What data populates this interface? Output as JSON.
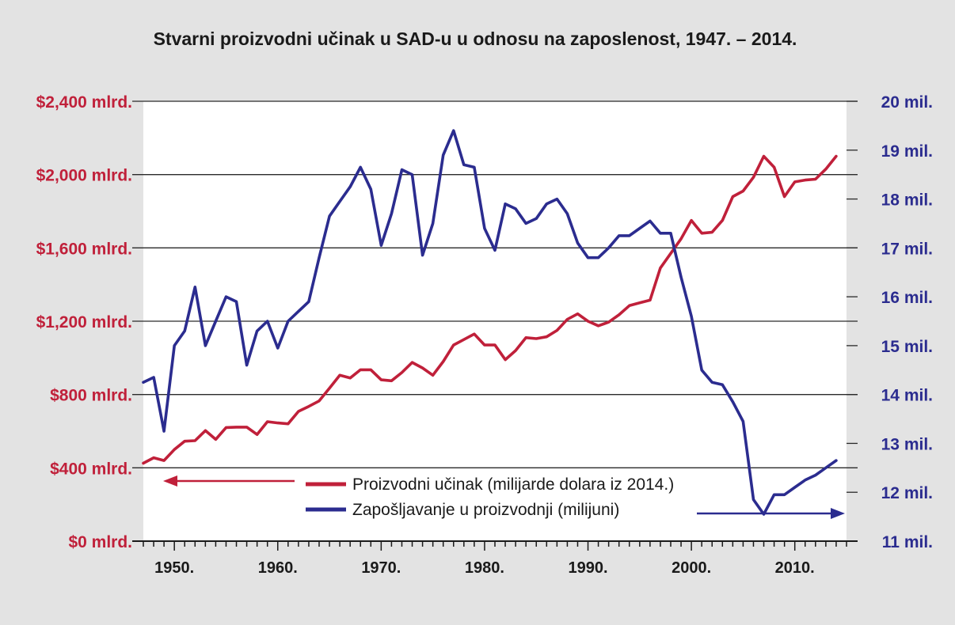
{
  "chart_data": {
    "type": "line",
    "title": "Stvarni proizvodni učinak u SAD-u u odnosu na zaposlenost, 1947. – 2014.",
    "xlim": [
      1947,
      2015
    ],
    "x_ticks": [
      1950,
      1960,
      1970,
      1980,
      1990,
      2000,
      2010
    ],
    "x_tick_labels": [
      "1950.",
      "1960.",
      "1970.",
      "1980.",
      "1990.",
      "2000.",
      "2010."
    ],
    "y_left": {
      "ylim": [
        0,
        2400
      ],
      "ticks": [
        0,
        400,
        800,
        1200,
        1600,
        2000,
        2400
      ],
      "tick_labels": [
        "$0 mlrd.",
        "$400 mlrd.",
        "$800 mlrd.",
        "$1,200 mlrd.",
        "$1,600 mlrd.",
        "$2,000 mlrd.",
        "$2,400 mlrd."
      ]
    },
    "y_right": {
      "ylim": [
        11,
        20
      ],
      "ticks": [
        11,
        12,
        13,
        14,
        15,
        16,
        17,
        18,
        19,
        20
      ],
      "tick_labels": [
        "11 mil.",
        "12 mil.",
        "13 mil.",
        "14 mil.",
        "15 mil.",
        "16 mil.",
        "17 mil.",
        "18 mil.",
        "19 mil.",
        "20 mil."
      ]
    },
    "grid": true,
    "x": [
      1947,
      1948,
      1949,
      1950,
      1951,
      1952,
      1953,
      1954,
      1955,
      1956,
      1957,
      1958,
      1959,
      1960,
      1961,
      1962,
      1963,
      1964,
      1965,
      1966,
      1967,
      1968,
      1969,
      1970,
      1971,
      1972,
      1973,
      1974,
      1975,
      1976,
      1977,
      1978,
      1979,
      1980,
      1981,
      1982,
      1983,
      1984,
      1985,
      1986,
      1987,
      1988,
      1989,
      1990,
      1991,
      1992,
      1993,
      1994,
      1995,
      1996,
      1997,
      1998,
      1999,
      2000,
      2001,
      2002,
      2003,
      2004,
      2005,
      2006,
      2007,
      2008,
      2009,
      2010,
      2011,
      2012,
      2013,
      2014
    ],
    "series": [
      {
        "name": "Proizvodni učinak (milijarde dolara iz 2014.)",
        "axis": "left",
        "color": "#c0203a",
        "values": [
          425,
          455,
          440,
          500,
          545,
          548,
          603,
          555,
          620,
          622,
          622,
          582,
          652,
          645,
          640,
          708,
          735,
          765,
          835,
          905,
          890,
          935,
          935,
          880,
          875,
          920,
          975,
          945,
          905,
          980,
          1070,
          1100,
          1130,
          1070,
          1070,
          990,
          1040,
          1110,
          1105,
          1115,
          1150,
          1210,
          1240,
          1200,
          1175,
          1195,
          1235,
          1285,
          1300,
          1315,
          1490,
          1570,
          1650,
          1750,
          1680,
          1685,
          1750,
          1880,
          1910,
          1985,
          2100,
          2040,
          1880,
          1960,
          1970,
          1975,
          2030,
          2100
        ]
      },
      {
        "name": "Zapošljavanje u proizvodnji (milijuni)",
        "axis": "right",
        "color": "#2b2c8f",
        "values": [
          14.25,
          14.35,
          13.25,
          15.0,
          15.3,
          16.2,
          15.0,
          15.5,
          16.0,
          15.9,
          14.6,
          15.3,
          15.5,
          14.95,
          15.5,
          15.7,
          15.9,
          16.8,
          17.65,
          17.95,
          18.25,
          18.65,
          18.2,
          17.05,
          17.7,
          18.6,
          18.5,
          16.85,
          17.5,
          18.9,
          19.4,
          18.7,
          18.65,
          17.4,
          16.95,
          17.9,
          17.8,
          17.5,
          17.6,
          17.9,
          18.0,
          17.7,
          17.1,
          16.8,
          16.8,
          17.0,
          17.25,
          17.25,
          17.4,
          17.55,
          17.3,
          17.3,
          16.4,
          15.6,
          14.5,
          14.25,
          14.2,
          13.85,
          13.45,
          11.85,
          11.55,
          11.95,
          11.95,
          12.1,
          12.25,
          12.35,
          12.5,
          12.65
        ]
      }
    ],
    "legend": [
      {
        "label": "Proizvodni učinak (milijarde dolara iz 2014.)",
        "color": "#c0203a"
      },
      {
        "label": "Zapošljavanje u proizvodnji (milijuni)",
        "color": "#2b2c8f"
      }
    ]
  }
}
